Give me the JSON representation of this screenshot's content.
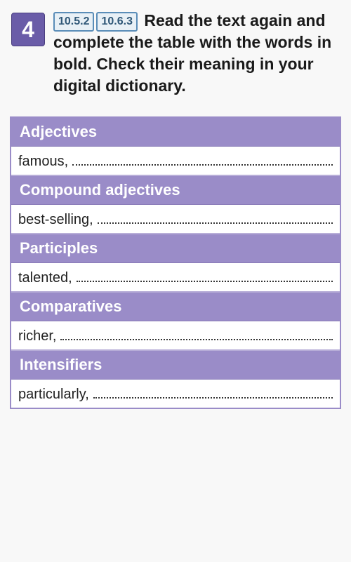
{
  "exercise": {
    "number": "4",
    "refs": [
      "10.5.2",
      "10.6.3"
    ],
    "instruction": "Read the text again and complete the table with the words in bold. Check their meaning in your digital dictionary."
  },
  "table": {
    "rows": [
      {
        "category": "Adjectives",
        "example": "famous,"
      },
      {
        "category": "Compound adjectives",
        "example": "best-selling,"
      },
      {
        "category": "Participles",
        "example": "talented,"
      },
      {
        "category": "Comparatives",
        "example": "richer,"
      },
      {
        "category": "Intensifiers",
        "example": "particularly,"
      }
    ]
  },
  "colors": {
    "number_bg": "#6a5ca8",
    "header_bg": "#9a8cc8",
    "ref_border": "#5a8db8",
    "page_bg": "#f8f8f8"
  }
}
